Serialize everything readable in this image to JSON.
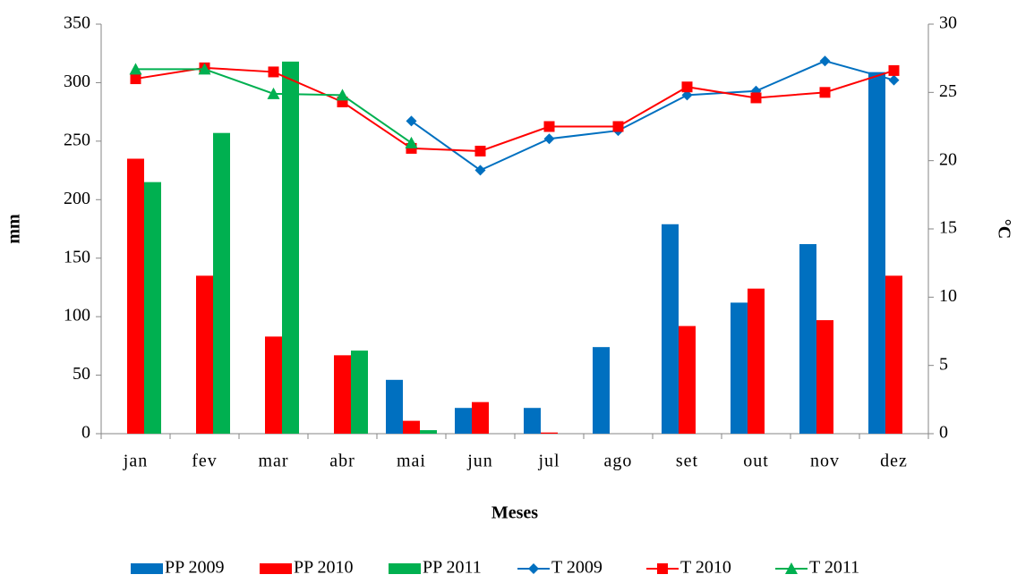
{
  "chart_data": {
    "type": "combo",
    "x_label": "Meses",
    "y_label": "mm",
    "y2_label": "°C",
    "categories": [
      "jan",
      "fev",
      "mar",
      "abr",
      "mai",
      "jun",
      "jul",
      "ago",
      "set",
      "out",
      "nov",
      "dez"
    ],
    "ylim": [
      0,
      350
    ],
    "yticks": [
      0,
      50,
      100,
      150,
      200,
      250,
      300,
      350
    ],
    "y2lim": [
      0,
      30
    ],
    "y2ticks": [
      0,
      5,
      10,
      15,
      20,
      25,
      30
    ],
    "legend": "bottom",
    "series": [
      {
        "name": "PP 2009",
        "type": "bar",
        "color": "#0070c0",
        "values": [
          null,
          null,
          null,
          null,
          46,
          22,
          22,
          74,
          179,
          112,
          162,
          309
        ]
      },
      {
        "name": "PP 2010",
        "type": "bar",
        "color": "#ff0000",
        "values": [
          235,
          135,
          83,
          67,
          11,
          27,
          1,
          null,
          92,
          124,
          97,
          135
        ]
      },
      {
        "name": "PP 2011",
        "type": "bar",
        "color": "#00b050",
        "values": [
          215,
          257,
          318,
          71,
          3,
          null,
          null,
          null,
          null,
          null,
          null,
          null
        ]
      },
      {
        "name": "T 2009",
        "type": "line",
        "axis": "y2",
        "marker": "diamond",
        "color": "#0070c0",
        "values": [
          null,
          null,
          null,
          null,
          22.9,
          19.3,
          21.6,
          22.2,
          24.8,
          25.1,
          27.3,
          25.9
        ]
      },
      {
        "name": "T 2010",
        "type": "line",
        "axis": "y2",
        "marker": "square",
        "color": "#ff0000",
        "values": [
          26.0,
          26.8,
          26.5,
          24.3,
          20.9,
          20.7,
          22.5,
          22.5,
          25.4,
          24.6,
          25.0,
          26.6
        ]
      },
      {
        "name": "T 2011",
        "type": "line",
        "axis": "y2",
        "marker": "triangle",
        "color": "#00b050",
        "values": [
          26.7,
          26.7,
          24.9,
          24.8,
          21.3,
          null,
          null,
          null,
          null,
          null,
          null,
          null
        ]
      }
    ]
  }
}
